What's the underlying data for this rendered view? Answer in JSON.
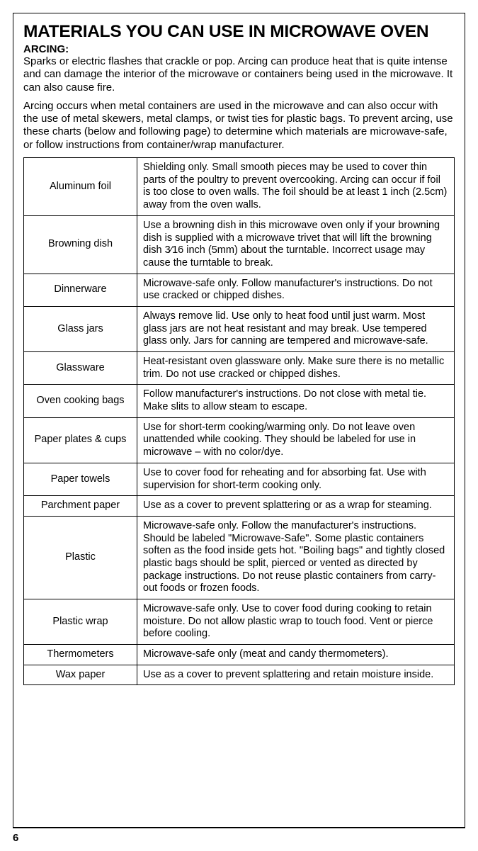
{
  "title": "MATERIALS YOU CAN USE IN MICROWAVE OVEN",
  "subheading": "ARCING:",
  "intro1": "Sparks or electric flashes that crackle or pop. Arcing can produce heat that is quite intense and can damage the interior of the microwave or containers being used in the microwave. It can also cause fire.",
  "intro2": "Arcing occurs when metal containers are used in the microwave and can also occur with the use of metal skewers, metal clamps, or twist ties for plastic bags. To prevent arcing, use these charts (below and following page) to determine which materials are microwave-safe, or follow instructions from container/wrap manufacturer.",
  "rows": [
    {
      "material": "Aluminum foil",
      "desc": "Shielding only. Small smooth pieces may be used to cover thin parts of the poultry to prevent overcooking. Arcing can occur if foil is too close to oven walls. The foil should be at least 1 inch (2.5cm) away from the oven walls."
    },
    {
      "material": "Browning dish",
      "desc": "Use a browning dish in this microwave oven only if your browning dish is supplied with a microwave trivet that will lift the browning dish 3⁄16 inch (5mm) about the turntable. Incorrect usage may cause the turntable to break."
    },
    {
      "material": "Dinnerware",
      "desc": "Microwave-safe only. Follow manufacturer's instructions. Do not use cracked or chipped dishes."
    },
    {
      "material": "Glass jars",
      "desc": "Always remove lid. Use only to heat food until just warm. Most glass jars are not heat resistant and may break. Use tempered glass only. Jars for canning are tempered and microwave-safe."
    },
    {
      "material": "Glassware",
      "desc": "Heat-resistant oven glassware only. Make sure there is no metallic trim. Do not use cracked or chipped dishes."
    },
    {
      "material": "Oven cooking bags",
      "desc": "Follow manufacturer's instructions. Do not close with metal tie. Make slits to allow steam to escape."
    },
    {
      "material": "Paper plates & cups",
      "desc": "Use for short-term cooking/warming only. Do not leave oven unattended while cooking. They should be labeled for use in microwave – with no color/dye."
    },
    {
      "material": "Paper towels",
      "desc": "Use to cover food for reheating and for absorbing fat. Use with supervision for short-term cooking only."
    },
    {
      "material": "Parchment paper",
      "desc": "Use as a cover to prevent splattering or as a wrap for steaming."
    },
    {
      "material": "Plastic",
      "desc": "Microwave-safe only. Follow the manufacturer's instructions. Should be labeled \"Microwave-Safe\". Some plastic containers soften as the food inside gets hot. \"Boiling bags\" and tightly closed plastic bags should be split, pierced or vented as directed by package instructions. Do not reuse plastic containers from carry-out foods or frozen foods."
    },
    {
      "material": "Plastic wrap",
      "desc": "Microwave-safe only. Use to cover food during cooking to retain moisture. Do not allow plastic wrap to touch food. Vent or pierce before cooling."
    },
    {
      "material": "Thermometers",
      "desc": "Microwave-safe only (meat and candy thermometers)."
    },
    {
      "material": "Wax paper",
      "desc": "Use as a cover to prevent splattering and retain moisture inside."
    }
  ],
  "pageNumber": "6"
}
